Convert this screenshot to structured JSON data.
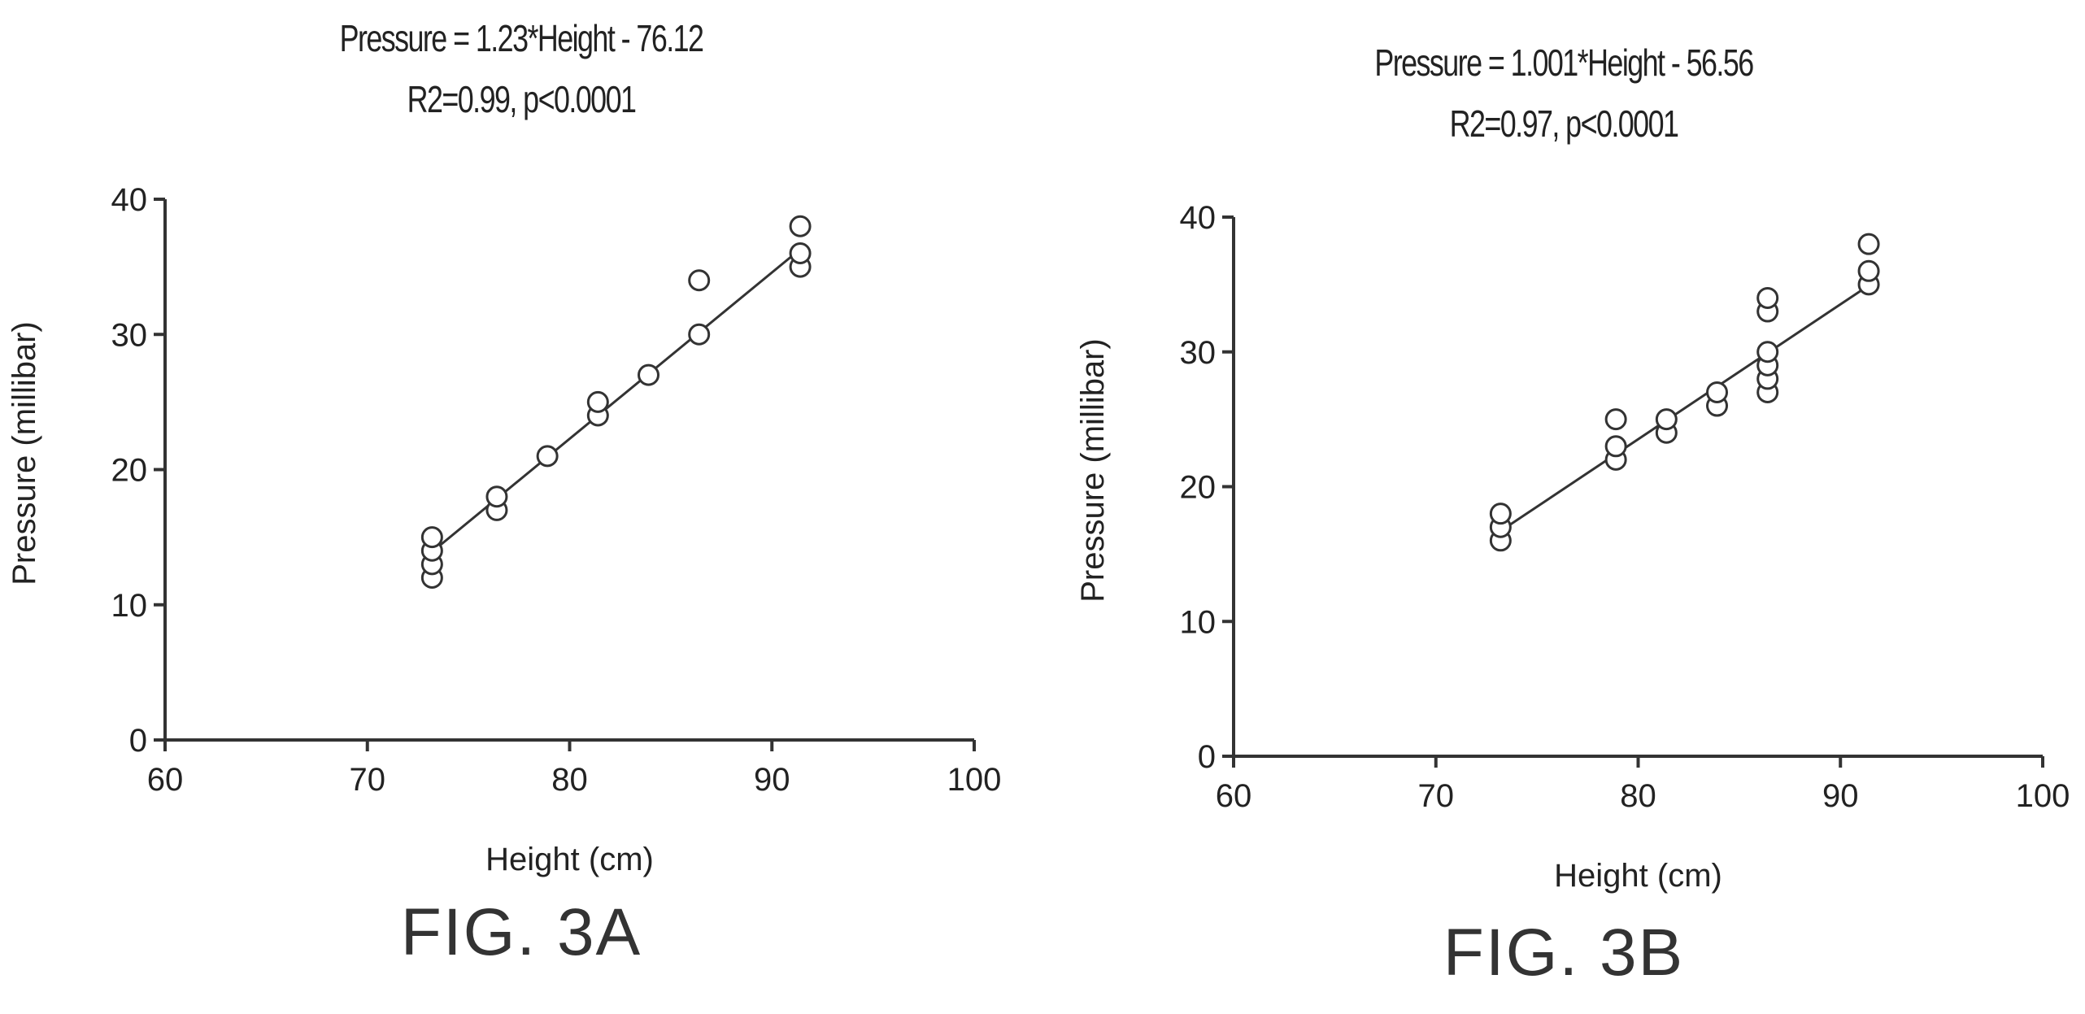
{
  "chart_data": [
    {
      "type": "scatter",
      "title": "Pressure = 1.23*Height - 76.12",
      "subtitle": "R2=0.99, p<0.0001",
      "xlabel": "Height (cm)",
      "ylabel": "Pressure (millibar)",
      "xlim": [
        60,
        100
      ],
      "ylim": [
        0,
        40
      ],
      "xticks": [
        60,
        70,
        80,
        90,
        100
      ],
      "yticks": [
        0,
        10,
        20,
        30,
        40
      ],
      "fit": {
        "slope": 1.23,
        "intercept": -76.12,
        "x_range": [
          73.2,
          91.4
        ]
      },
      "points": [
        {
          "x": 73.2,
          "y": 12
        },
        {
          "x": 73.2,
          "y": 13
        },
        {
          "x": 73.2,
          "y": 14
        },
        {
          "x": 73.2,
          "y": 15
        },
        {
          "x": 76.4,
          "y": 17
        },
        {
          "x": 76.4,
          "y": 18
        },
        {
          "x": 78.9,
          "y": 21
        },
        {
          "x": 81.4,
          "y": 24
        },
        {
          "x": 81.4,
          "y": 25
        },
        {
          "x": 83.9,
          "y": 27
        },
        {
          "x": 86.4,
          "y": 30
        },
        {
          "x": 86.4,
          "y": 34
        },
        {
          "x": 91.4,
          "y": 35
        },
        {
          "x": 91.4,
          "y": 36
        },
        {
          "x": 91.4,
          "y": 38
        }
      ],
      "figure_label": "FIG. 3A"
    },
    {
      "type": "scatter",
      "title": "Pressure = 1.001*Height - 56.56",
      "subtitle": "R2=0.97, p<0.0001",
      "xlabel": "Height (cm)",
      "ylabel": "Pressure (millibar)",
      "xlim": [
        60,
        100
      ],
      "ylim": [
        0,
        40
      ],
      "xticks": [
        60,
        70,
        80,
        90,
        100
      ],
      "yticks": [
        0,
        10,
        20,
        30,
        40
      ],
      "fit": {
        "slope": 1.001,
        "intercept": -56.56,
        "x_range": [
          73.2,
          91.4
        ]
      },
      "points": [
        {
          "x": 73.2,
          "y": 16
        },
        {
          "x": 73.2,
          "y": 17
        },
        {
          "x": 73.2,
          "y": 18
        },
        {
          "x": 78.9,
          "y": 22
        },
        {
          "x": 78.9,
          "y": 23
        },
        {
          "x": 78.9,
          "y": 25
        },
        {
          "x": 81.4,
          "y": 24
        },
        {
          "x": 81.4,
          "y": 25
        },
        {
          "x": 83.9,
          "y": 26
        },
        {
          "x": 83.9,
          "y": 27
        },
        {
          "x": 86.4,
          "y": 27
        },
        {
          "x": 86.4,
          "y": 28
        },
        {
          "x": 86.4,
          "y": 29
        },
        {
          "x": 86.4,
          "y": 30
        },
        {
          "x": 86.4,
          "y": 33
        },
        {
          "x": 86.4,
          "y": 34
        },
        {
          "x": 91.4,
          "y": 35
        },
        {
          "x": 91.4,
          "y": 36
        },
        {
          "x": 91.4,
          "y": 38
        }
      ],
      "figure_label": "FIG. 3B"
    }
  ]
}
